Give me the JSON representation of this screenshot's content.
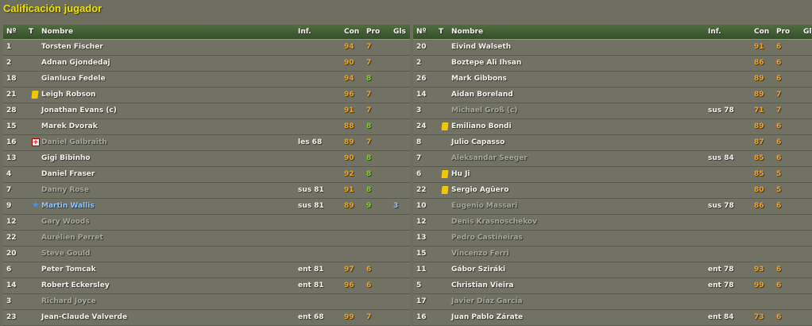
{
  "title": "Calificación jugador",
  "columns": {
    "num": "Nº",
    "t": "T",
    "name": "Nombre",
    "inf": "Inf.",
    "con": "Con",
    "pro": "Pro",
    "gls": "Gls"
  },
  "colors": {
    "title": "#f0e000",
    "con": "#f0a020",
    "pro_good": "#80d020",
    "pro_avg": "#f0a020",
    "scorer": "#8ec4f4"
  },
  "left": [
    {
      "num": "1",
      "name": "Torsten Fischer",
      "inf": "",
      "con": "94",
      "pro": "7",
      "gls": "",
      "icon": "",
      "state": "normal"
    },
    {
      "num": "2",
      "name": "Adnan Gjondedaj",
      "inf": "",
      "con": "90",
      "pro": "7",
      "gls": "",
      "icon": "",
      "state": "normal"
    },
    {
      "num": "18",
      "name": "Gianluca Fedele",
      "inf": "",
      "con": "94",
      "pro": "8",
      "gls": "",
      "icon": "",
      "state": "normal"
    },
    {
      "num": "21",
      "name": "Leigh Robson",
      "inf": "",
      "con": "96",
      "pro": "7",
      "gls": "",
      "icon": "yellow-card",
      "state": "normal"
    },
    {
      "num": "28",
      "name": "Jonathan Evans (c)",
      "inf": "",
      "con": "91",
      "pro": "7",
      "gls": "",
      "icon": "",
      "state": "normal"
    },
    {
      "num": "15",
      "name": "Marek Dvorak",
      "inf": "",
      "con": "88",
      "pro": "8",
      "gls": "",
      "icon": "",
      "state": "normal"
    },
    {
      "num": "16",
      "name": "Daniel Galbraith",
      "inf": "les 68",
      "con": "89",
      "pro": "7",
      "gls": "",
      "icon": "injury",
      "state": "dim"
    },
    {
      "num": "13",
      "name": "Gigi Bibinho",
      "inf": "",
      "con": "90",
      "pro": "8",
      "gls": "",
      "icon": "",
      "state": "normal"
    },
    {
      "num": "4",
      "name": "Daniel Fraser",
      "inf": "",
      "con": "92",
      "pro": "8",
      "gls": "",
      "icon": "",
      "state": "normal"
    },
    {
      "num": "7",
      "name": "Danny Rose",
      "inf": "sus 81",
      "con": "91",
      "pro": "8",
      "gls": "",
      "icon": "",
      "state": "dim"
    },
    {
      "num": "9",
      "name": "Martin Wallis",
      "inf": "sus 81",
      "con": "89",
      "pro": "9",
      "gls": "3",
      "icon": "star",
      "state": "blue"
    },
    {
      "num": "12",
      "name": "Gary Woods",
      "inf": "",
      "con": "",
      "pro": "",
      "gls": "",
      "icon": "",
      "state": "dim"
    },
    {
      "num": "22",
      "name": "Aurélien Perret",
      "inf": "",
      "con": "",
      "pro": "",
      "gls": "",
      "icon": "",
      "state": "dim"
    },
    {
      "num": "20",
      "name": "Steve Gould",
      "inf": "",
      "con": "",
      "pro": "",
      "gls": "",
      "icon": "",
      "state": "dim"
    },
    {
      "num": "6",
      "name": "Peter Tomcak",
      "inf": "ent 81",
      "con": "97",
      "pro": "6",
      "gls": "",
      "icon": "",
      "state": "normal"
    },
    {
      "num": "14",
      "name": "Robert Eckersley",
      "inf": "ent 81",
      "con": "96",
      "pro": "6",
      "gls": "",
      "icon": "",
      "state": "normal"
    },
    {
      "num": "3",
      "name": "Richard Joyce",
      "inf": "",
      "con": "",
      "pro": "",
      "gls": "",
      "icon": "",
      "state": "dim"
    },
    {
      "num": "23",
      "name": "Jean-Claude Valverde",
      "inf": "ent 68",
      "con": "99",
      "pro": "7",
      "gls": "",
      "icon": "",
      "state": "normal"
    }
  ],
  "right": [
    {
      "num": "20",
      "name": "Eivind Walseth",
      "inf": "",
      "con": "91",
      "pro": "6",
      "gls": "",
      "icon": "",
      "state": "normal"
    },
    {
      "num": "2",
      "name": "Boztepe Ali Ihsan",
      "inf": "",
      "con": "86",
      "pro": "6",
      "gls": "",
      "icon": "",
      "state": "normal"
    },
    {
      "num": "26",
      "name": "Mark Gibbons",
      "inf": "",
      "con": "89",
      "pro": "6",
      "gls": "",
      "icon": "",
      "state": "normal"
    },
    {
      "num": "14",
      "name": "Aidan Boreland",
      "inf": "",
      "con": "89",
      "pro": "7",
      "gls": "",
      "icon": "",
      "state": "normal"
    },
    {
      "num": "3",
      "name": "Michael Groß (c)",
      "inf": "sus 78",
      "con": "71",
      "pro": "7",
      "gls": "",
      "icon": "",
      "state": "dim"
    },
    {
      "num": "24",
      "name": "Emiliano Bondi",
      "inf": "",
      "con": "89",
      "pro": "6",
      "gls": "",
      "icon": "yellow-card",
      "state": "normal"
    },
    {
      "num": "8",
      "name": "Julio Capasso",
      "inf": "",
      "con": "87",
      "pro": "6",
      "gls": "",
      "icon": "",
      "state": "normal"
    },
    {
      "num": "7",
      "name": "Aleksandar Seeger",
      "inf": "sus 84",
      "con": "85",
      "pro": "6",
      "gls": "",
      "icon": "",
      "state": "dim"
    },
    {
      "num": "6",
      "name": "Hu Ji",
      "inf": "",
      "con": "85",
      "pro": "5",
      "gls": "",
      "icon": "yellow-card",
      "state": "normal"
    },
    {
      "num": "22",
      "name": "Sergio Agüero",
      "inf": "",
      "con": "80",
      "pro": "5",
      "gls": "",
      "icon": "yellow-card",
      "state": "normal"
    },
    {
      "num": "10",
      "name": "Eugenio Massari",
      "inf": "sus 78",
      "con": "86",
      "pro": "6",
      "gls": "",
      "icon": "",
      "state": "dim"
    },
    {
      "num": "12",
      "name": "Denis Krasnoschekov",
      "inf": "",
      "con": "",
      "pro": "",
      "gls": "",
      "icon": "",
      "state": "dim"
    },
    {
      "num": "13",
      "name": "Pedro Castiñeiras",
      "inf": "",
      "con": "",
      "pro": "",
      "gls": "",
      "icon": "",
      "state": "dim"
    },
    {
      "num": "15",
      "name": "Vincenzo Ferri",
      "inf": "",
      "con": "",
      "pro": "",
      "gls": "",
      "icon": "",
      "state": "dim"
    },
    {
      "num": "11",
      "name": "Gábor Sziráki",
      "inf": "ent 78",
      "con": "93",
      "pro": "6",
      "gls": "",
      "icon": "",
      "state": "normal"
    },
    {
      "num": "5",
      "name": "Christian Vieira",
      "inf": "ent 78",
      "con": "99",
      "pro": "6",
      "gls": "",
      "icon": "",
      "state": "normal"
    },
    {
      "num": "17",
      "name": "Javier Díaz García",
      "inf": "",
      "con": "",
      "pro": "",
      "gls": "",
      "icon": "",
      "state": "dim"
    },
    {
      "num": "16",
      "name": "Juan Pablo Zárate",
      "inf": "ent 84",
      "con": "73",
      "pro": "6",
      "gls": "",
      "icon": "",
      "state": "normal"
    }
  ]
}
